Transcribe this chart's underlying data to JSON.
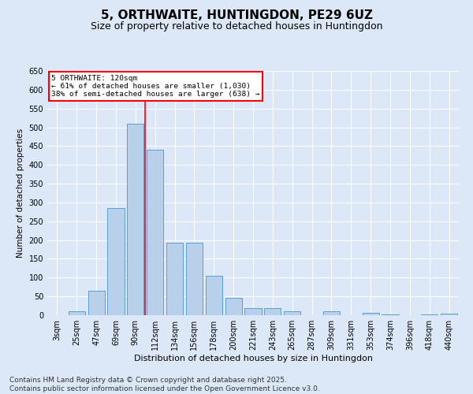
{
  "title": "5, ORTHWAITE, HUNTINGDON, PE29 6UZ",
  "subtitle": "Size of property relative to detached houses in Huntingdon",
  "xlabel": "Distribution of detached houses by size in Huntingdon",
  "ylabel": "Number of detached properties",
  "categories": [
    "3sqm",
    "25sqm",
    "47sqm",
    "69sqm",
    "90sqm",
    "112sqm",
    "134sqm",
    "156sqm",
    "178sqm",
    "200sqm",
    "221sqm",
    "243sqm",
    "265sqm",
    "287sqm",
    "309sqm",
    "331sqm",
    "353sqm",
    "374sqm",
    "396sqm",
    "418sqm",
    "440sqm"
  ],
  "values": [
    0,
    10,
    65,
    285,
    510,
    440,
    193,
    193,
    105,
    46,
    18,
    18,
    10,
    0,
    10,
    0,
    7,
    3,
    0,
    3,
    5
  ],
  "bar_color": "#b8d0ea",
  "bar_edge_color": "#5a9fd4",
  "red_line_x": 4.5,
  "annotation_line1": "5 ORTHWAITE: 120sqm",
  "annotation_line2": "← 61% of detached houses are smaller (1,030)",
  "annotation_line3": "38% of semi-detached houses are larger (638) →",
  "annotation_box_color": "white",
  "annotation_box_edge": "red",
  "ylim": [
    0,
    650
  ],
  "yticks": [
    0,
    50,
    100,
    150,
    200,
    250,
    300,
    350,
    400,
    450,
    500,
    550,
    600,
    650
  ],
  "bg_color": "#dce8f8",
  "plot_bg_color": "#dce8f8",
  "footer": "Contains HM Land Registry data © Crown copyright and database right 2025.\nContains public sector information licensed under the Open Government Licence v3.0.",
  "title_fontsize": 11,
  "subtitle_fontsize": 9,
  "xlabel_fontsize": 8,
  "ylabel_fontsize": 7.5,
  "tick_fontsize": 7,
  "footer_fontsize": 6.5
}
